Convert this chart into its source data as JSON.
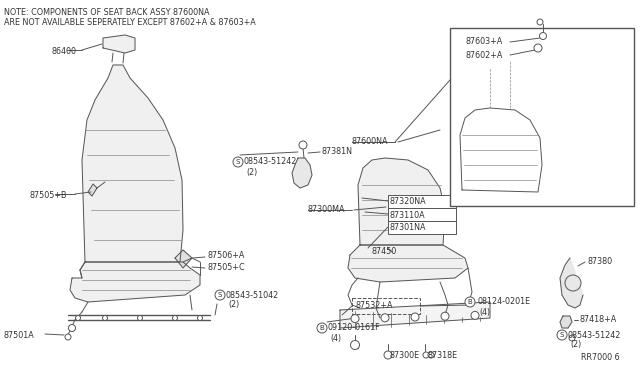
{
  "bg_color": "#ffffff",
  "line_color": "#555555",
  "text_color": "#333333",
  "note_line1": "NOTE: COMPONENTS OF SEAT BACK ASSY 87600NA",
  "note_line2": "ARE NOT AVAILABLE SEPERATELY EXCEPT 87602+A & 87603+A",
  "ref_id": "RR7000 6",
  "label_fs": 5.8,
  "lw": 0.7
}
